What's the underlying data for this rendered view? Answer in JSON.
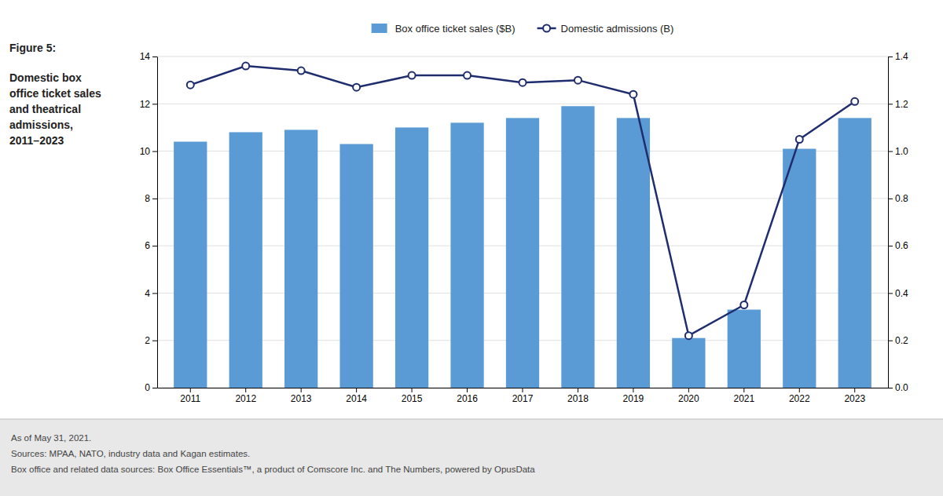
{
  "chart_data": {
    "type": "bar",
    "title": "Figure 5:",
    "subtitle": "Domestic box\noffice ticket sales\nand theatrical\nadmissions,\n2011–2023",
    "categories": [
      "2011",
      "2012",
      "2013",
      "2014",
      "2015",
      "2016",
      "2017",
      "2018",
      "2019",
      "2020",
      "2021",
      "2022",
      "2023"
    ],
    "series": [
      {
        "name": "Box office ticket sales ($B)",
        "type": "bar",
        "color": "#5b9bd5",
        "values": [
          10.4,
          10.8,
          10.9,
          10.3,
          11.0,
          11.2,
          11.4,
          11.9,
          11.4,
          2.1,
          3.3,
          10.1,
          11.4
        ]
      },
      {
        "name": "Domestic admissions (B)",
        "type": "line",
        "color": "#1f2d6e",
        "marker": "circle",
        "axis": "y2",
        "values": [
          1.28,
          1.36,
          1.34,
          1.27,
          1.32,
          1.32,
          1.29,
          1.3,
          1.24,
          0.22,
          0.35,
          1.05,
          1.21
        ]
      }
    ],
    "ylim": [
      0,
      14
    ],
    "yticks": [
      0,
      2,
      4,
      6,
      8,
      10,
      12,
      14
    ],
    "y2lim": [
      0,
      1.4
    ],
    "y2ticks": [
      {
        "value": 0,
        "label": "0.0"
      },
      0.2,
      0.4,
      0.6,
      0.8,
      {
        "value": 1,
        "label": "1.0"
      },
      1.2,
      1.4
    ],
    "grid": true,
    "legend": "top",
    "annotations": [
      "As of May 31, 2021.",
      "Sources: MPAA, NATO, industry data and Kagan estimates.",
      "Box office and related data sources: Box Office Essentials™, a product of Comscore Inc. and The Numbers, powered by OpusData"
    ]
  }
}
